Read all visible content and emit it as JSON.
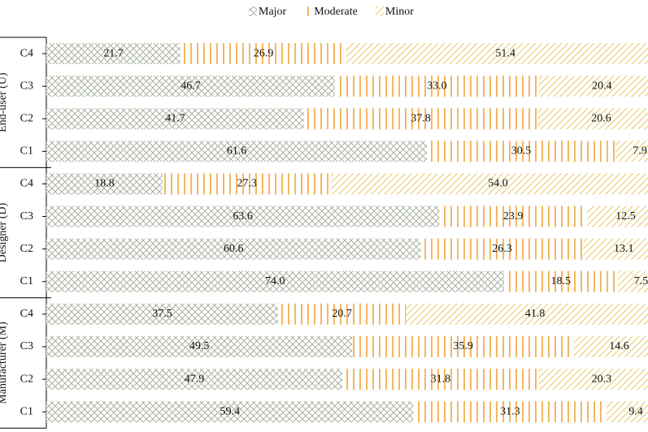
{
  "chart_data": {
    "type": "stacked-bar-horizontal",
    "groups": [
      {
        "name": "End-user (U)",
        "size": 4
      },
      {
        "name": "Designer (D)",
        "size": 4
      },
      {
        "name": "Manufacturer (M)",
        "size": 4
      }
    ],
    "categories": [
      "C4",
      "C3",
      "C2",
      "C1",
      "C4",
      "C3",
      "C2",
      "C1",
      "C4",
      "C3",
      "C2",
      "C1"
    ],
    "series": [
      {
        "name": "Major",
        "color": "#a9b3a0",
        "pattern": "crosshatch",
        "values": [
          21.7,
          46.7,
          41.7,
          61.6,
          18.8,
          63.6,
          60.6,
          74.0,
          37.5,
          49.5,
          47.9,
          59.4
        ],
        "value_labels": [
          "21.7",
          "46.7",
          "41.7",
          "61.6",
          "18.8",
          "63.6",
          "60.6",
          "74.0",
          "37.5",
          "49.5",
          "47.9",
          "59.4"
        ]
      },
      {
        "name": "Moderate",
        "color": "#f0a53a",
        "pattern": "vertical",
        "values": [
          26.9,
          33.0,
          37.8,
          30.5,
          27.3,
          23.9,
          26.3,
          18.5,
          20.7,
          35.9,
          31.8,
          31.3
        ],
        "value_labels": [
          "26.9",
          "33.0",
          "37.8",
          "30.5",
          "27.3",
          "23.9",
          "26.3",
          "18.5",
          "20.7",
          "35.9",
          "31.8",
          "31.3"
        ]
      },
      {
        "name": "Minor",
        "color": "#e6c968",
        "pattern": "diagonal",
        "values": [
          51.4,
          20.4,
          20.6,
          7.9,
          54.0,
          12.5,
          13.1,
          7.5,
          41.8,
          14.6,
          20.3,
          9.4
        ],
        "value_labels": [
          "51.4",
          "20.4",
          "20.6",
          "7.9",
          "54.0",
          "12.5",
          "13.1",
          "7.5",
          "41.8",
          "14.6",
          "20.3",
          "9.4"
        ]
      }
    ],
    "legend": "top"
  }
}
